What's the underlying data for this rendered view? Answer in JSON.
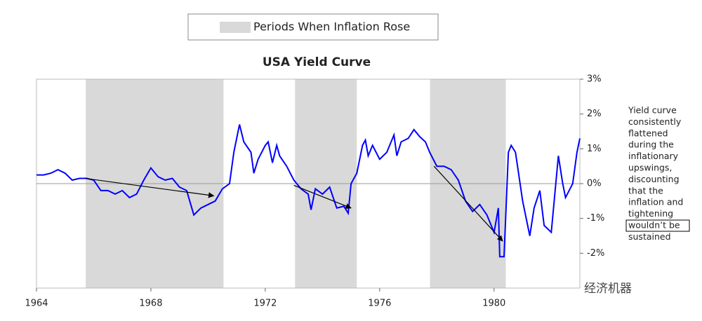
{
  "chart_data": {
    "type": "line",
    "title": "USA Yield Curve",
    "legend_label": "Periods When Inflation Rose",
    "shade_color": "#d9d9d9",
    "shaded_periods": [
      [
        1965.72,
        1970.54
      ],
      [
        1973.04,
        1975.2
      ],
      [
        1977.76,
        1980.41
      ]
    ],
    "x": [
      1964,
      1964.25,
      1964.5,
      1964.75,
      1965,
      1965.25,
      1965.5,
      1965.75,
      1966,
      1966.25,
      1966.5,
      1966.75,
      1967,
      1967.25,
      1967.5,
      1967.75,
      1968,
      1968.25,
      1968.5,
      1968.75,
      1969,
      1969.25,
      1969.5,
      1969.75,
      1970,
      1970.25,
      1970.5,
      1970.75,
      1970.9,
      1971.1,
      1971.25,
      1971.5,
      1971.6,
      1971.75,
      1972,
      1972.1,
      1972.25,
      1972.4,
      1972.5,
      1972.75,
      1973,
      1973.25,
      1973.5,
      1973.6,
      1973.75,
      1974,
      1974.25,
      1974.5,
      1974.75,
      1974.9,
      1975,
      1975.2,
      1975.4,
      1975.5,
      1975.6,
      1975.75,
      1976,
      1976.25,
      1976.5,
      1976.6,
      1976.75,
      1977,
      1977.2,
      1977.4,
      1977.6,
      1977.75,
      1978,
      1978.25,
      1978.5,
      1978.75,
      1979,
      1979.25,
      1979.5,
      1979.75,
      1980,
      1980.15,
      1980.2,
      1980.35,
      1980.5,
      1980.6,
      1980.75,
      1981,
      1981.25,
      1981.4,
      1981.6,
      1981.75,
      1982,
      1982.25,
      1982.4,
      1982.5,
      1982.75,
      1982.9,
      1983
    ],
    "series": [
      {
        "color": "#0000ff",
        "values": [
          0.25,
          0.25,
          0.3,
          0.4,
          0.3,
          0.1,
          0.15,
          0.15,
          0.1,
          -0.2,
          -0.2,
          -0.3,
          -0.2,
          -0.4,
          -0.3,
          0.1,
          0.45,
          0.2,
          0.1,
          0.15,
          -0.1,
          -0.2,
          -0.9,
          -0.7,
          -0.6,
          -0.5,
          -0.15,
          0.0,
          0.9,
          1.7,
          1.2,
          0.9,
          0.3,
          0.7,
          1.1,
          1.2,
          0.6,
          1.1,
          0.8,
          0.5,
          0.1,
          -0.15,
          -0.3,
          -0.75,
          -0.15,
          -0.3,
          -0.1,
          -0.7,
          -0.65,
          -0.85,
          0.0,
          0.3,
          1.1,
          1.25,
          0.8,
          1.1,
          0.7,
          0.9,
          1.4,
          0.8,
          1.2,
          1.3,
          1.55,
          1.35,
          1.2,
          0.9,
          0.5,
          0.5,
          0.4,
          0.1,
          -0.5,
          -0.8,
          -0.6,
          -0.9,
          -1.4,
          -0.7,
          -2.1,
          -2.1,
          0.9,
          1.1,
          0.9,
          -0.5,
          -1.5,
          -0.7,
          -0.2,
          -1.2,
          -1.4,
          0.8,
          0.0,
          -0.4,
          0.0,
          0.9,
          1.3
        ]
      }
    ],
    "xlim": [
      1964,
      1983
    ],
    "xticks": [
      1964,
      1968,
      1972,
      1976,
      1980
    ],
    "ylim": [
      -3,
      3
    ],
    "yticks": [
      {
        "value": 3,
        "label": "3%"
      },
      {
        "value": 2,
        "label": "2%"
      },
      {
        "value": 1,
        "label": "1%"
      },
      {
        "value": 0,
        "label": "0%"
      },
      {
        "value": -1,
        "label": "-1%"
      },
      {
        "value": -2,
        "label": "-2%"
      }
    ],
    "zero_line": true,
    "arrows": [
      {
        "from": [
          1965.7,
          0.15
        ],
        "to": [
          1970.2,
          -0.35
        ]
      },
      {
        "from": [
          1973.0,
          -0.05
        ],
        "to": [
          1975.0,
          -0.7
        ]
      },
      {
        "from": [
          1977.9,
          0.5
        ],
        "to": [
          1980.3,
          -1.65
        ]
      }
    ],
    "note_lines": [
      "Yield curve",
      "consistently",
      "flattened",
      "during the",
      "inflationary",
      "upswings,",
      "discounting",
      "that the",
      "inflation and",
      "tightening",
      "wouldn’t be",
      "sustained"
    ],
    "note_boxed_line": 10,
    "watermark": "经济机器"
  }
}
